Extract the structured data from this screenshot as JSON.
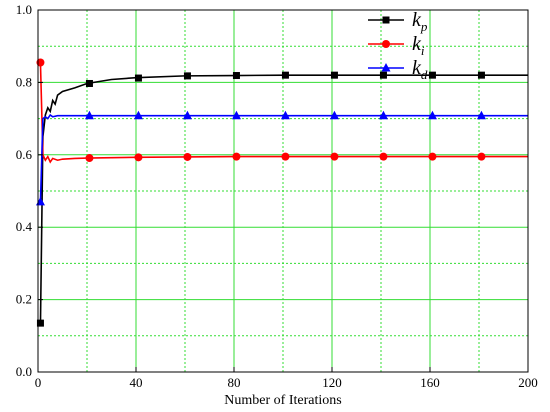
{
  "chart_data": {
    "type": "line",
    "title": "",
    "xlabel": "Number of Iterations",
    "ylabel": "",
    "xlim": [
      0,
      200
    ],
    "ylim": [
      0.0,
      1.0
    ],
    "x_ticks": [
      "0",
      "40",
      "80",
      "120",
      "160",
      "200"
    ],
    "y_ticks": [
      "0.0",
      "0.2",
      "0.4",
      "0.6",
      "0.8",
      "1.0"
    ],
    "grid": true,
    "grid_color": "#33dd33",
    "legend_position": "top-right",
    "series": [
      {
        "name": "k",
        "subscript": "p",
        "color": "#000000",
        "marker": "square",
        "line_x": [
          1,
          2,
          3,
          4,
          5,
          6,
          7,
          8,
          10,
          15,
          20,
          30,
          40,
          60,
          80,
          100,
          120,
          140,
          160,
          180,
          200
        ],
        "line_y": [
          0.13,
          0.65,
          0.71,
          0.73,
          0.72,
          0.75,
          0.74,
          0.765,
          0.775,
          0.785,
          0.797,
          0.808,
          0.813,
          0.818,
          0.819,
          0.82,
          0.82,
          0.82,
          0.82,
          0.82,
          0.82
        ],
        "marker_x": [
          1,
          21,
          41,
          61,
          81,
          101,
          121,
          141,
          161,
          181
        ],
        "marker_y": [
          0.135,
          0.797,
          0.812,
          0.818,
          0.819,
          0.82,
          0.82,
          0.82,
          0.82,
          0.82
        ]
      },
      {
        "name": "k",
        "subscript": "i",
        "color": "#ff0000",
        "marker": "circle",
        "line_x": [
          1,
          2,
          3,
          4,
          5,
          6,
          8,
          10,
          15,
          20,
          40,
          60,
          80,
          100,
          120,
          140,
          160,
          180,
          200
        ],
        "line_y": [
          0.855,
          0.6,
          0.585,
          0.595,
          0.58,
          0.59,
          0.585,
          0.588,
          0.59,
          0.591,
          0.593,
          0.594,
          0.595,
          0.595,
          0.595,
          0.595,
          0.595,
          0.595,
          0.595
        ],
        "marker_x": [
          1,
          21,
          41,
          61,
          81,
          101,
          121,
          141,
          161,
          181
        ],
        "marker_y": [
          0.855,
          0.591,
          0.593,
          0.594,
          0.595,
          0.595,
          0.595,
          0.595,
          0.595,
          0.595
        ]
      },
      {
        "name": "k",
        "subscript": "d",
        "color": "#0000ff",
        "marker": "triangle",
        "line_x": [
          1,
          2,
          3,
          4,
          5,
          6,
          8,
          10,
          20,
          40,
          60,
          80,
          100,
          120,
          140,
          160,
          180,
          200
        ],
        "line_y": [
          0.47,
          0.7,
          0.705,
          0.7,
          0.71,
          0.705,
          0.708,
          0.708,
          0.708,
          0.708,
          0.708,
          0.708,
          0.708,
          0.708,
          0.708,
          0.708,
          0.708,
          0.708
        ],
        "marker_x": [
          1,
          21,
          41,
          61,
          81,
          101,
          121,
          141,
          161,
          181
        ],
        "marker_y": [
          0.47,
          0.708,
          0.708,
          0.708,
          0.708,
          0.708,
          0.708,
          0.708,
          0.708,
          0.708
        ]
      }
    ]
  }
}
